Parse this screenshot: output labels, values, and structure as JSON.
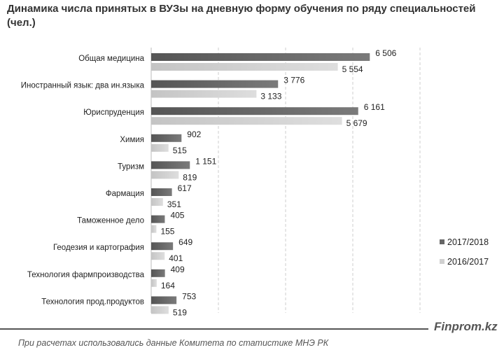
{
  "chart_data": {
    "type": "bar",
    "orientation": "horizontal",
    "title": "Динамика числа принятых в ВУЗы на дневную форму обучения по ряду специальностей (чел.)",
    "categories": [
      "Общая медицина",
      "Иностранный язык: два ин.языка",
      "Юриспруденция",
      "Химия",
      "Туризм",
      "Фармация",
      "Таможенное дело",
      "Геодезия и картография",
      "Технология фармпроизводства",
      "Технология прод.продуктов"
    ],
    "series": [
      {
        "name": "2017/2018",
        "color": "#666666",
        "values": [
          6506,
          3776,
          6161,
          902,
          1151,
          617,
          405,
          649,
          409,
          753
        ],
        "labels": [
          "6 506",
          "3 776",
          "6 161",
          "902",
          "1 151",
          "617",
          "405",
          "649",
          "409",
          "753"
        ]
      },
      {
        "name": "2016/2017",
        "color": "#d0d0d0",
        "values": [
          5554,
          3133,
          5679,
          515,
          819,
          351,
          155,
          401,
          164,
          519
        ],
        "labels": [
          "5 554",
          "3 133",
          "5 679",
          "515",
          "819",
          "351",
          "155",
          "401",
          "164",
          "519"
        ]
      }
    ],
    "xlim": [
      0,
      8000
    ],
    "grid": true,
    "legend": "right"
  },
  "source": {
    "brand": "Finprom.kz",
    "note": "При расчетах использовались данные Комитета по статистике МНЭ РК"
  }
}
